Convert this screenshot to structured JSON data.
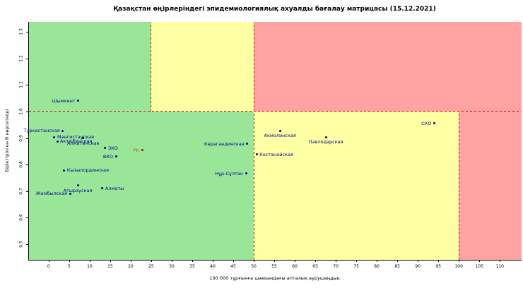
{
  "chart_data": {
    "type": "scatter",
    "title": "Қазақстан өңірлеріндегі эпидемиологиялық ахуалды бағалау матрицасы  (15.12.2021)",
    "xlabel": "100 000 тұрғынға шаққандағы апталық аурушаңдық",
    "ylabel": "Біріктірілген R көрсеткіші",
    "xlim": [
      -4.8,
      115.3
    ],
    "ylim": [
      0.441,
      1.338
    ],
    "x_ticks": [
      0,
      5,
      10,
      15,
      20,
      25,
      30,
      35,
      40,
      45,
      50,
      55,
      60,
      65,
      70,
      75,
      80,
      85,
      90,
      95,
      100,
      105,
      110
    ],
    "y_ticks": [
      0.5,
      0.6,
      0.7,
      0.8,
      0.9,
      1.0,
      1.1,
      1.2,
      1.3
    ],
    "grid": false,
    "legend": null,
    "zones": [
      {
        "name": "green-upper",
        "x": [
          -4.8,
          25
        ],
        "y": [
          1.0,
          1.338
        ],
        "color": "zone_green"
      },
      {
        "name": "yellow-upper",
        "x": [
          25,
          50
        ],
        "y": [
          1.0,
          1.338
        ],
        "color": "zone_yellow"
      },
      {
        "name": "red-upper",
        "x": [
          50,
          115.3
        ],
        "y": [
          1.0,
          1.338
        ],
        "color": "zone_red"
      },
      {
        "name": "green-lower",
        "x": [
          -4.8,
          50
        ],
        "y": [
          0.441,
          1.0
        ],
        "color": "zone_green"
      },
      {
        "name": "yellow-lower",
        "x": [
          50,
          100
        ],
        "y": [
          0.441,
          1.0
        ],
        "color": "zone_yellow"
      },
      {
        "name": "red-lower",
        "x": [
          100,
          115.3
        ],
        "y": [
          0.441,
          1.0
        ],
        "color": "zone_red"
      }
    ],
    "threshold_lines": [
      {
        "orientation": "horizontal",
        "y": 1.0,
        "x": [
          -4.8,
          115.3
        ]
      },
      {
        "orientation": "vertical",
        "x": 25,
        "y": [
          1.0,
          1.338
        ]
      },
      {
        "orientation": "vertical",
        "x": 50,
        "y": [
          0.441,
          1.338
        ]
      },
      {
        "orientation": "vertical",
        "x": 100,
        "y": [
          0.441,
          1.0
        ]
      }
    ],
    "points": [
      {
        "label": "Шымкент",
        "x": 7.2,
        "y": 1.04,
        "label_side": "left"
      },
      {
        "label": "Туркестанская",
        "x": 3.4,
        "y": 0.928,
        "label_side": "left"
      },
      {
        "label": "Мангистауская",
        "x": 1.4,
        "y": 0.904,
        "label_side": "right"
      },
      {
        "label": "Актюбинская",
        "x": 2.1,
        "y": 0.888,
        "label_side": "right"
      },
      {
        "label": "Алматинская",
        "x": 8.4,
        "y": 0.899,
        "label_side": "below"
      },
      {
        "label": "ЗКО",
        "x": 13.8,
        "y": 0.862,
        "label_side": "right"
      },
      {
        "label": "ВКО",
        "x": 16.4,
        "y": 0.83,
        "label_side": "left"
      },
      {
        "label": "РК",
        "x": 22.8,
        "y": 0.854,
        "label_side": "left",
        "label_color": "#c4571a",
        "dot_color": "#8b1a00"
      },
      {
        "label": "Кызылординская",
        "x": 3.8,
        "y": 0.779,
        "label_side": "right"
      },
      {
        "label": "Атырауская",
        "x": 7.1,
        "y": 0.721,
        "label_side": "below"
      },
      {
        "label": "Жамбылская",
        "x": 5.2,
        "y": 0.691,
        "label_side": "left"
      },
      {
        "label": "Алматы",
        "x": 13.1,
        "y": 0.71,
        "label_side": "right"
      },
      {
        "label": "Карагандинская",
        "x": 48.4,
        "y": 0.878,
        "label_side": "left"
      },
      {
        "label": "Костанайская",
        "x": 50.7,
        "y": 0.838,
        "label_side": "right"
      },
      {
        "label": "Нұр-Сұлтан",
        "x": 48.1,
        "y": 0.766,
        "label_side": "left"
      },
      {
        "label": "Акмолинская",
        "x": 56.4,
        "y": 0.928,
        "label_side": "below"
      },
      {
        "label": "Павлодарская",
        "x": 67.6,
        "y": 0.904,
        "label_side": "below"
      },
      {
        "label": "СКО",
        "x": 94.0,
        "y": 0.955,
        "label_side": "left"
      }
    ]
  },
  "colors": {
    "zone_green": "#99e699",
    "zone_yellow": "#ffffa3",
    "zone_red": "#ffa3a3",
    "threshold_line": "#e60000",
    "point": "#00008b",
    "point_label": "#00008b"
  }
}
